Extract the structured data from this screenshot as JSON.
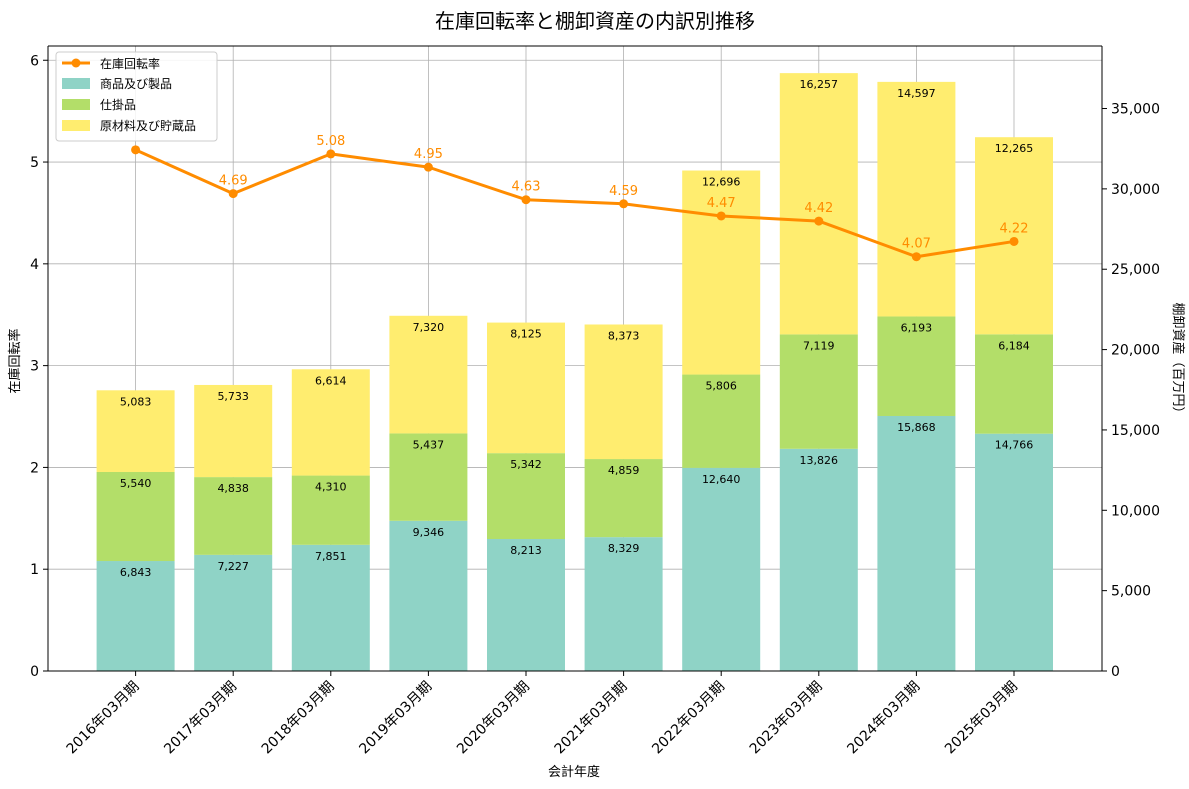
{
  "chart_data": {
    "type": "bar",
    "title": "在庫回転率と棚卸資産の内訳別推移",
    "xlabel": "会計年度",
    "ylabel_left": "在庫回転率",
    "ylabel_right": "棚卸資産（百万円）",
    "categories": [
      "2016年03月期",
      "2017年03月期",
      "2018年03月期",
      "2019年03月期",
      "2020年03月期",
      "2021年03月期",
      "2022年03月期",
      "2023年03月期",
      "2024年03月期",
      "2025年03月期"
    ],
    "stacked_series": [
      {
        "name": "商品及び製品",
        "color": "#8fd3c6",
        "values": [
          6843,
          7227,
          7851,
          9346,
          8213,
          8329,
          12640,
          13826,
          15868,
          14766
        ],
        "labels": [
          "6,843",
          "7,227",
          "7,851",
          "9,346",
          "8,213",
          "8,329",
          "12,640",
          "13,826",
          "15,868",
          "14,766"
        ]
      },
      {
        "name": "仕掛品",
        "color": "#b3de69",
        "values": [
          5540,
          4838,
          4310,
          5437,
          5342,
          4859,
          5806,
          7119,
          6193,
          6184
        ],
        "labels": [
          "5,540",
          "4,838",
          "4,310",
          "5,437",
          "5,342",
          "4,859",
          "5,806",
          "7,119",
          "6,193",
          "6,184"
        ]
      },
      {
        "name": "原材料及び貯蔵品",
        "color": "#ffed6f",
        "values": [
          5083,
          5733,
          6614,
          7320,
          8125,
          8373,
          12696,
          16257,
          14597,
          12265
        ],
        "labels": [
          "5,083",
          "5,733",
          "6,614",
          "7,320",
          "8,125",
          "8,373",
          "12,696",
          "16,257",
          "14,597",
          "12,265"
        ]
      }
    ],
    "line_series": {
      "name": "在庫回転率",
      "color": "#ff8c00",
      "values": [
        5.12,
        4.69,
        5.08,
        4.95,
        4.63,
        4.59,
        4.47,
        4.42,
        4.07,
        4.22
      ],
      "labels": [
        "5.12",
        "4.69",
        "5.08",
        "4.95",
        "4.63",
        "4.59",
        "4.47",
        "4.42",
        "4.07",
        "4.22"
      ]
    },
    "y_left": {
      "lim": [
        0,
        6.14
      ],
      "ticks": [
        0,
        1,
        2,
        3,
        4,
        5,
        6
      ],
      "tick_labels": [
        "0",
        "1",
        "2",
        "3",
        "4",
        "5",
        "6"
      ]
    },
    "y_right": {
      "lim": [
        0,
        38890
      ],
      "ticks": [
        0,
        5000,
        10000,
        15000,
        20000,
        25000,
        30000,
        35000
      ],
      "tick_labels": [
        "0",
        "5,000",
        "10,000",
        "15,000",
        "20,000",
        "25,000",
        "30,000",
        "35,000"
      ]
    },
    "grid": true,
    "legend_position": "top-left"
  }
}
